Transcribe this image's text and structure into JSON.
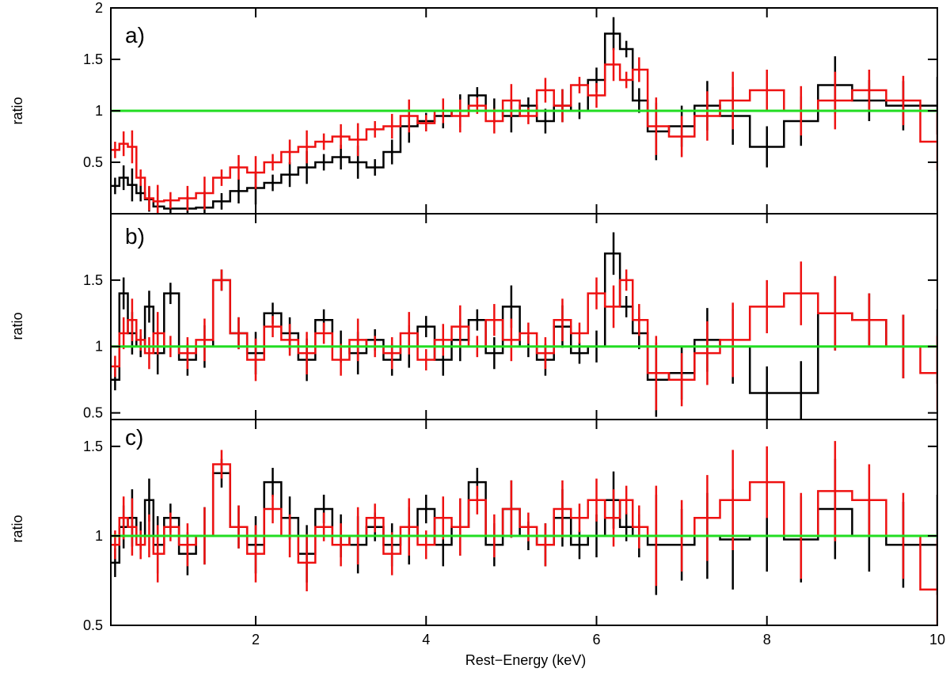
{
  "chart_data": {
    "type": "line",
    "title": "",
    "xlabel": "Rest−Energy (keV)",
    "xlim": [
      0.3,
      10
    ],
    "xticks": [
      2,
      4,
      6,
      8,
      10
    ],
    "xtick_labels": [
      "2",
      "4",
      "6",
      "8",
      "10"
    ],
    "reference_line": {
      "y": 1,
      "color": "#22dd22"
    },
    "series_styles": [
      {
        "name": "black spectrum",
        "color": "#000000"
      },
      {
        "name": "red spectrum",
        "color": "#ee1111"
      }
    ],
    "panels": [
      {
        "label": "a)",
        "ylabel": "ratio",
        "ylim": [
          0,
          2
        ],
        "yticks": [
          0.5,
          1,
          1.5,
          2
        ],
        "ytick_labels": [
          "0.5",
          "1",
          "1.5",
          "2"
        ],
        "series": [
          {
            "name": "black spectrum",
            "x": [
              0.35,
              0.45,
              0.55,
              0.65,
              0.75,
              0.85,
              1.0,
              1.2,
              1.4,
              1.6,
              1.8,
              2.0,
              2.2,
              2.4,
              2.6,
              2.8,
              3.0,
              3.2,
              3.4,
              3.6,
              3.8,
              4.0,
              4.2,
              4.4,
              4.6,
              4.8,
              5.0,
              5.2,
              5.4,
              5.6,
              5.8,
              6.0,
              6.2,
              6.35,
              6.5,
              6.7,
              7.0,
              7.3,
              7.6,
              8.0,
              8.4,
              8.8,
              9.2,
              9.6,
              10.0
            ],
            "y": [
              0.27,
              0.35,
              0.28,
              0.2,
              0.14,
              0.07,
              0.05,
              0.05,
              0.06,
              0.12,
              0.22,
              0.25,
              0.3,
              0.38,
              0.45,
              0.5,
              0.55,
              0.5,
              0.45,
              0.6,
              0.85,
              0.9,
              0.95,
              1.0,
              1.15,
              1.0,
              0.95,
              1.05,
              0.9,
              1.05,
              1.0,
              1.3,
              1.75,
              1.6,
              1.1,
              0.8,
              0.85,
              1.05,
              0.95,
              0.65,
              0.9,
              1.25,
              1.1,
              1.05,
              1.05
            ]
          },
          {
            "name": "red spectrum",
            "x": [
              0.35,
              0.45,
              0.55,
              0.65,
              0.75,
              0.85,
              1.0,
              1.2,
              1.4,
              1.6,
              1.8,
              2.0,
              2.2,
              2.4,
              2.6,
              2.8,
              3.0,
              3.2,
              3.4,
              3.6,
              3.8,
              4.0,
              4.2,
              4.4,
              4.6,
              4.8,
              5.0,
              5.2,
              5.4,
              5.6,
              5.8,
              6.0,
              6.2,
              6.35,
              6.5,
              6.7,
              7.0,
              7.3,
              7.6,
              8.0,
              8.4,
              8.8,
              9.2,
              9.6,
              10.0
            ],
            "y": [
              0.62,
              0.68,
              0.65,
              0.35,
              0.15,
              0.12,
              0.13,
              0.15,
              0.2,
              0.35,
              0.45,
              0.4,
              0.5,
              0.6,
              0.65,
              0.7,
              0.75,
              0.72,
              0.82,
              0.85,
              0.95,
              0.88,
              1.0,
              0.95,
              1.05,
              0.9,
              1.1,
              0.95,
              1.2,
              1.05,
              1.25,
              1.15,
              1.45,
              1.3,
              1.4,
              0.85,
              0.75,
              0.95,
              1.1,
              1.2,
              1.0,
              1.1,
              1.2,
              1.1,
              0.7
            ]
          }
        ]
      },
      {
        "label": "b)",
        "ylabel": "ratio",
        "ylim": [
          0.45,
          2
        ],
        "yticks": [
          0.5,
          1,
          1.5
        ],
        "ytick_labels": [
          "0.5",
          "1",
          "1.5"
        ],
        "series": [
          {
            "name": "black spectrum",
            "x": [
              0.35,
              0.45,
              0.55,
              0.65,
              0.75,
              0.85,
              1.0,
              1.2,
              1.4,
              1.6,
              1.8,
              2.0,
              2.2,
              2.4,
              2.6,
              2.8,
              3.0,
              3.2,
              3.4,
              3.6,
              3.8,
              4.0,
              4.2,
              4.4,
              4.6,
              4.8,
              5.0,
              5.2,
              5.4,
              5.6,
              5.8,
              6.0,
              6.2,
              6.35,
              6.5,
              6.7,
              7.0,
              7.3,
              7.6,
              8.0,
              8.4,
              8.8,
              9.2,
              9.6,
              10.0
            ],
            "y": [
              0.75,
              1.4,
              1.1,
              1.0,
              1.3,
              0.95,
              1.4,
              0.9,
              1.0,
              1.5,
              1.1,
              0.95,
              1.25,
              1.1,
              0.9,
              1.2,
              1.0,
              0.95,
              1.05,
              0.9,
              1.0,
              1.15,
              0.9,
              1.05,
              1.2,
              0.95,
              1.3,
              1.0,
              0.9,
              1.15,
              0.95,
              1.0,
              1.7,
              1.3,
              1.1,
              0.75,
              0.8,
              1.05,
              1.0,
              0.65,
              0.65,
              1.25,
              1.2,
              1.0,
              1.0
            ]
          },
          {
            "name": "red spectrum",
            "x": [
              0.35,
              0.45,
              0.55,
              0.65,
              0.75,
              0.85,
              1.0,
              1.2,
              1.4,
              1.6,
              1.8,
              2.0,
              2.2,
              2.4,
              2.6,
              2.8,
              3.0,
              3.2,
              3.4,
              3.6,
              3.8,
              4.0,
              4.2,
              4.4,
              4.6,
              4.8,
              5.0,
              5.2,
              5.4,
              5.6,
              5.8,
              6.0,
              6.2,
              6.35,
              6.5,
              6.7,
              7.0,
              7.3,
              7.6,
              8.0,
              8.4,
              8.8,
              9.2,
              9.6,
              10.0
            ],
            "y": [
              0.85,
              1.1,
              1.2,
              1.05,
              0.95,
              1.1,
              1.0,
              0.95,
              1.05,
              1.5,
              1.1,
              0.9,
              1.15,
              1.05,
              0.95,
              1.1,
              0.9,
              1.05,
              1.0,
              0.95,
              1.1,
              0.9,
              1.05,
              1.15,
              1.0,
              1.2,
              1.05,
              1.1,
              0.95,
              1.2,
              1.1,
              1.4,
              1.3,
              1.5,
              1.2,
              0.8,
              0.75,
              0.95,
              1.05,
              1.3,
              1.4,
              1.25,
              1.2,
              1.0,
              0.8
            ]
          }
        ]
      },
      {
        "label": "c)",
        "ylabel": "ratio",
        "ylim": [
          0.5,
          1.65
        ],
        "yticks": [
          0.5,
          1,
          1.5
        ],
        "ytick_labels": [
          "0.5",
          "1",
          "1.5"
        ],
        "series": [
          {
            "name": "black spectrum",
            "x": [
              0.35,
              0.45,
              0.55,
              0.65,
              0.75,
              0.85,
              1.0,
              1.2,
              1.4,
              1.6,
              1.8,
              2.0,
              2.2,
              2.4,
              2.6,
              2.8,
              3.0,
              3.2,
              3.4,
              3.6,
              3.8,
              4.0,
              4.2,
              4.4,
              4.6,
              4.8,
              5.0,
              5.2,
              5.4,
              5.6,
              5.8,
              6.0,
              6.2,
              6.35,
              6.5,
              6.7,
              7.0,
              7.3,
              7.6,
              8.0,
              8.4,
              8.8,
              9.2,
              9.6,
              10.0
            ],
            "y": [
              0.85,
              1.05,
              1.1,
              1.0,
              1.2,
              0.95,
              1.1,
              0.9,
              1.0,
              1.35,
              1.05,
              0.95,
              1.3,
              1.1,
              0.9,
              1.15,
              1.0,
              0.95,
              1.05,
              0.95,
              1.0,
              1.15,
              0.95,
              1.05,
              1.3,
              0.95,
              1.15,
              1.0,
              0.95,
              1.1,
              0.95,
              1.0,
              1.2,
              1.05,
              1.0,
              0.95,
              0.95,
              1.0,
              0.98,
              1.0,
              0.98,
              1.15,
              1.0,
              0.95,
              0.95
            ]
          },
          {
            "name": "red spectrum",
            "x": [
              0.35,
              0.45,
              0.55,
              0.65,
              0.75,
              0.85,
              1.0,
              1.2,
              1.4,
              1.6,
              1.8,
              2.0,
              2.2,
              2.4,
              2.6,
              2.8,
              3.0,
              3.2,
              3.4,
              3.6,
              3.8,
              4.0,
              4.2,
              4.4,
              4.6,
              4.8,
              5.0,
              5.2,
              5.4,
              5.6,
              5.8,
              6.0,
              6.2,
              6.35,
              6.5,
              6.7,
              7.0,
              7.3,
              7.6,
              8.0,
              8.4,
              8.8,
              9.2,
              9.6,
              10.0
            ],
            "y": [
              0.95,
              1.1,
              1.05,
              0.95,
              1.0,
              0.9,
              1.05,
              0.95,
              1.0,
              1.4,
              1.05,
              0.9,
              1.15,
              1.0,
              0.85,
              1.05,
              0.95,
              1.0,
              1.1,
              0.9,
              1.05,
              0.95,
              1.1,
              1.05,
              1.2,
              1.0,
              1.15,
              1.05,
              0.95,
              1.15,
              1.1,
              1.2,
              1.1,
              1.2,
              1.05,
              1.0,
              1.0,
              1.1,
              1.2,
              1.3,
              1.0,
              1.25,
              1.2,
              1.0,
              0.7
            ]
          }
        ]
      }
    ]
  }
}
